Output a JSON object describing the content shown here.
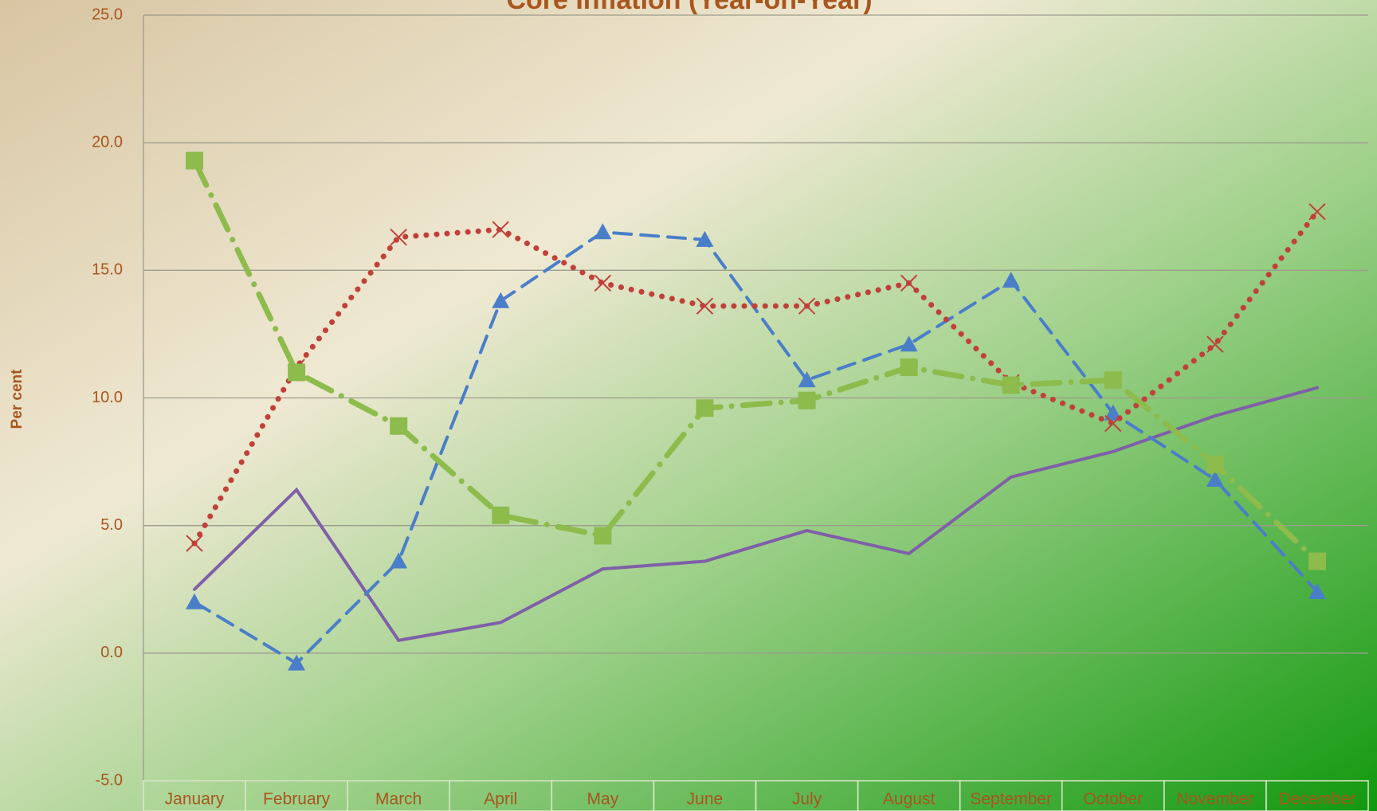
{
  "chart_data": {
    "type": "line",
    "title": "Core Inflation (Year-on-Year)",
    "y_label": "Per cent",
    "categories": [
      "January",
      "February",
      "March",
      "April",
      "May",
      "June",
      "July",
      "August",
      "September",
      "October",
      "November",
      "December"
    ],
    "series": [
      {
        "color": "#7f5fa8",
        "marker": "none",
        "dash": "solid",
        "values": [
          2.5,
          6.4,
          0.5,
          1.2,
          3.3,
          3.6,
          4.8,
          3.9,
          6.9,
          7.9,
          9.3,
          10.4
        ]
      },
      {
        "color": "#4a7ec9",
        "marker": "triangle",
        "dash": "dashed",
        "values": [
          2.0,
          -0.4,
          3.6,
          13.8,
          16.5,
          16.2,
          10.7,
          12.1,
          14.6,
          9.4,
          6.8,
          2.4
        ]
      },
      {
        "color": "#c0403a",
        "marker": "cross",
        "dash": "dotted",
        "values": [
          4.3,
          11.2,
          16.3,
          16.6,
          14.5,
          13.6,
          13.6,
          14.5,
          10.6,
          9.0,
          12.1,
          17.3
        ]
      },
      {
        "color": "#8dbb4c",
        "marker": "square",
        "dash": "dashdot",
        "values": [
          19.3,
          11.0,
          8.9,
          5.4,
          4.6,
          9.6,
          9.9,
          11.2,
          10.5,
          10.7,
          7.4,
          3.6
        ]
      }
    ],
    "ylim": [
      -5,
      25
    ],
    "yticks": [
      {
        "value": -5,
        "label": "-5.0"
      },
      {
        "value": 0,
        "label": "0.0"
      },
      {
        "value": 5,
        "label": "5.0"
      },
      {
        "value": 10,
        "label": "10.0"
      },
      {
        "value": 15,
        "label": "15.0"
      },
      {
        "value": 20,
        "label": "20.0"
      },
      {
        "value": 25,
        "label": "25.0"
      }
    ],
    "grid": true
  }
}
